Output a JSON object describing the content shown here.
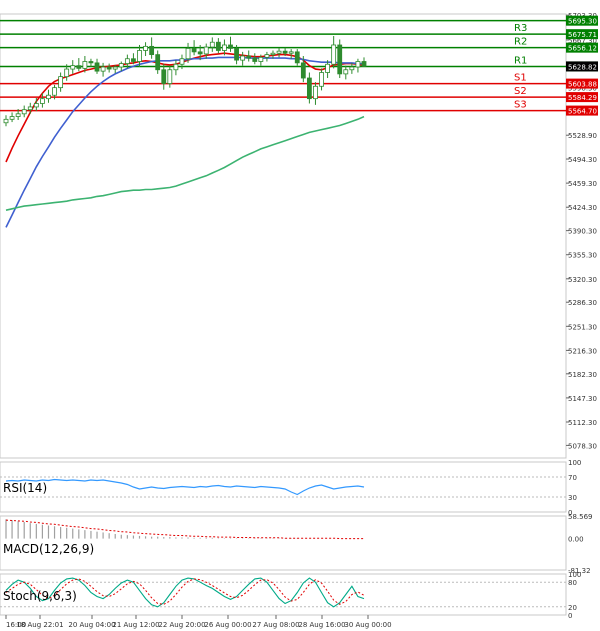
{
  "colors": {
    "background": "#ffffff",
    "grid": "#c8c8c8",
    "axis_text": "#333333",
    "candle_up": "#2e8b2e",
    "candle_down": "#2e8b2e",
    "sma_fast": "#e00000",
    "sma_mid": "#4060d0",
    "sma_slow": "#3cb371",
    "resistance": "#008000",
    "support": "#e00000",
    "rsi": "#3399ff",
    "macd_hist": "#a0a0a0",
    "macd_signal": "#e00000",
    "stoch_main": "#00aa88",
    "stoch_signal": "#e00000"
  },
  "chart_data": [
    {
      "type": "candlestick",
      "panel": "price",
      "ylim": [
        5060,
        5705
      ],
      "y_ticks": [
        5703.3,
        5667.3,
        5633.0,
        5598.3,
        5528.9,
        5494.3,
        5459.3,
        5424.3,
        5390.3,
        5355.3,
        5320.3,
        5286.3,
        5251.3,
        5216.3,
        5182.3,
        5147.3,
        5112.3,
        5078.3
      ],
      "x_ticks": [
        "16:00",
        "18 Aug 22:01",
        "20 Aug 04:00",
        "21 Aug 12:00",
        "22 Aug 20:00",
        "26 Aug 00:00",
        "27 Aug 08:00",
        "28 Aug 16:00",
        "30 Aug 00:00"
      ],
      "candles": [
        [
          5547,
          5558,
          5542,
          5552
        ],
        [
          5552,
          5562,
          5548,
          5556
        ],
        [
          5556,
          5567,
          5551,
          5560
        ],
        [
          5560,
          5572,
          5555,
          5566
        ],
        [
          5566,
          5576,
          5560,
          5570
        ],
        [
          5570,
          5583,
          5564,
          5575
        ],
        [
          5575,
          5590,
          5569,
          5582
        ],
        [
          5582,
          5595,
          5576,
          5587
        ],
        [
          5587,
          5602,
          5581,
          5598
        ],
        [
          5598,
          5620,
          5592,
          5614
        ],
        [
          5614,
          5632,
          5608,
          5625
        ],
        [
          5625,
          5638,
          5618,
          5630
        ],
        [
          5630,
          5641,
          5622,
          5626
        ],
        [
          5626,
          5644,
          5620,
          5636
        ],
        [
          5636,
          5640,
          5628,
          5634
        ],
        [
          5634,
          5640,
          5618,
          5622
        ],
        [
          5622,
          5634,
          5614,
          5628
        ],
        [
          5628,
          5633,
          5620,
          5625
        ],
        [
          5625,
          5631,
          5619,
          5628
        ],
        [
          5628,
          5636,
          5622,
          5633
        ],
        [
          5633,
          5646,
          5626,
          5640
        ],
        [
          5640,
          5648,
          5632,
          5636
        ],
        [
          5636,
          5660,
          5628,
          5652
        ],
        [
          5652,
          5664,
          5644,
          5658
        ],
        [
          5658,
          5671,
          5640,
          5646
        ],
        [
          5646,
          5652,
          5618,
          5624
        ],
        [
          5624,
          5633,
          5595,
          5604
        ],
        [
          5604,
          5630,
          5598,
          5624
        ],
        [
          5624,
          5638,
          5616,
          5632
        ],
        [
          5632,
          5646,
          5625,
          5640
        ],
        [
          5640,
          5663,
          5634,
          5655
        ],
        [
          5655,
          5667,
          5645,
          5650
        ],
        [
          5650,
          5660,
          5638,
          5647
        ],
        [
          5647,
          5662,
          5640,
          5657
        ],
        [
          5657,
          5671,
          5650,
          5664
        ],
        [
          5664,
          5670,
          5648,
          5652
        ],
        [
          5652,
          5668,
          5645,
          5660
        ],
        [
          5660,
          5672,
          5650,
          5655
        ],
        [
          5655,
          5660,
          5632,
          5638
        ],
        [
          5638,
          5650,
          5630,
          5644
        ],
        [
          5644,
          5652,
          5636,
          5641
        ],
        [
          5641,
          5648,
          5632,
          5636
        ],
        [
          5636,
          5646,
          5630,
          5642
        ],
        [
          5642,
          5650,
          5636,
          5646
        ],
        [
          5646,
          5652,
          5640,
          5648
        ],
        [
          5648,
          5655,
          5642,
          5651
        ],
        [
          5651,
          5656,
          5644,
          5648
        ],
        [
          5648,
          5654,
          5640,
          5650
        ],
        [
          5650,
          5654,
          5630,
          5634
        ],
        [
          5634,
          5644,
          5606,
          5612
        ],
        [
          5612,
          5620,
          5575,
          5582
        ],
        [
          5582,
          5606,
          5573,
          5600
        ],
        [
          5600,
          5626,
          5594,
          5620
        ],
        [
          5620,
          5638,
          5612,
          5632
        ],
        [
          5632,
          5673,
          5626,
          5660
        ],
        [
          5660,
          5668,
          5612,
          5618
        ],
        [
          5618,
          5630,
          5610,
          5624
        ],
        [
          5624,
          5634,
          5618,
          5628
        ],
        [
          5628,
          5640,
          5620,
          5636
        ],
        [
          5636,
          5642,
          5628,
          5629
        ]
      ],
      "series": [
        {
          "name": "",
          "role": "sma_fast",
          "values": [
            5490,
            5510,
            5528,
            5545,
            5562,
            5578,
            5590,
            5600,
            5607,
            5611,
            5614,
            5617,
            5620,
            5623,
            5625,
            5627,
            5628,
            5629,
            5630,
            5631,
            5633,
            5634,
            5636,
            5637,
            5636,
            5634,
            5632,
            5631,
            5632,
            5635,
            5638,
            5641,
            5643,
            5645,
            5646,
            5647,
            5648,
            5647,
            5646,
            5645,
            5644,
            5643,
            5643,
            5644,
            5645,
            5646,
            5646,
            5645,
            5643,
            5638,
            5630,
            5625,
            5624,
            5627,
            5631,
            5632,
            5633,
            5633,
            5632,
            5630
          ]
        },
        {
          "name": "",
          "role": "sma_mid",
          "values": [
            5395,
            5413,
            5431,
            5449,
            5466,
            5483,
            5498,
            5512,
            5526,
            5539,
            5551,
            5563,
            5573,
            5583,
            5592,
            5600,
            5607,
            5613,
            5618,
            5622,
            5626,
            5629,
            5632,
            5634,
            5636,
            5637,
            5637,
            5637,
            5638,
            5638,
            5639,
            5640,
            5640,
            5641,
            5641,
            5642,
            5642,
            5642,
            5642,
            5642,
            5641,
            5641,
            5641,
            5641,
            5641,
            5641,
            5641,
            5640,
            5640,
            5639,
            5637,
            5636,
            5635,
            5635,
            5635,
            5634,
            5634,
            5634,
            5633,
            5633
          ]
        },
        {
          "name": "",
          "role": "sma_slow",
          "values": [
            5420,
            5422,
            5424,
            5426,
            5427,
            5428,
            5429,
            5430,
            5431,
            5432,
            5433,
            5435,
            5436,
            5437,
            5438,
            5440,
            5441,
            5443,
            5445,
            5447,
            5448,
            5449,
            5449,
            5450,
            5450,
            5451,
            5452,
            5453,
            5455,
            5458,
            5461,
            5464,
            5467,
            5470,
            5474,
            5478,
            5482,
            5487,
            5492,
            5497,
            5501,
            5505,
            5509,
            5512,
            5515,
            5518,
            5521,
            5524,
            5527,
            5530,
            5533,
            5535,
            5537,
            5539,
            5541,
            5543,
            5546,
            5549,
            5552,
            5556
          ]
        }
      ],
      "levels": [
        {
          "label": "R3",
          "value": 5675.71,
          "value_text": "5675.71",
          "kind": "resistance"
        },
        {
          "label": "R2",
          "value": 5656.12,
          "value_text": "5656.12",
          "kind": "resistance"
        },
        {
          "label": "R1",
          "value": 5628.82,
          "value_text": "5628.82",
          "kind": "resistance"
        },
        {
          "label": "S1",
          "value": 5603.88,
          "value_text": "5603.88",
          "kind": "support"
        },
        {
          "label": "S2",
          "value": 5584.29,
          "value_text": "5584.29",
          "kind": "support"
        },
        {
          "label": "S3",
          "value": 5564.7,
          "value_text": "5564.70",
          "kind": "support"
        }
      ],
      "top_resistance_value": 5695.3,
      "top_resistance_text": "5695.30",
      "last_price": 5628.82,
      "last_price_text": "5628.82"
    },
    {
      "type": "line",
      "panel": "rsi",
      "title": "RSI(14)",
      "ylim": [
        0,
        100
      ],
      "y_ticks": [
        100,
        70,
        30,
        0
      ],
      "series": [
        {
          "name": "",
          "values": [
            62,
            63,
            62,
            64,
            63,
            62,
            64,
            63,
            65,
            64,
            63,
            64,
            63,
            62,
            64,
            63,
            64,
            62,
            60,
            58,
            55,
            50,
            46,
            48,
            50,
            48,
            47,
            49,
            50,
            51,
            50,
            49,
            51,
            50,
            52,
            53,
            51,
            50,
            52,
            51,
            50,
            49,
            51,
            50,
            49,
            48,
            46,
            40,
            35,
            42,
            48,
            52,
            54,
            50,
            46,
            48,
            50,
            51,
            52,
            50
          ]
        }
      ]
    },
    {
      "type": "bar",
      "panel": "macd",
      "title": "MACD(12,26,9)",
      "ylim": [
        -81.32,
        58.569
      ],
      "y_ticks": [
        58.569,
        0.0,
        -81.32
      ],
      "y_tick_labels": [
        "58.569",
        "0.00",
        "-81.32"
      ],
      "series": [
        {
          "name": "",
          "role": "histogram",
          "values": [
            50,
            48,
            45,
            43,
            40,
            38,
            36,
            34,
            32,
            30,
            28,
            26,
            24,
            22,
            20,
            18,
            16,
            14,
            12,
            10,
            9,
            8,
            7,
            6,
            5,
            5,
            4,
            4,
            3,
            3,
            3,
            2,
            2,
            2,
            2,
            1,
            1,
            1,
            1,
            1,
            1,
            1,
            1,
            1,
            1,
            1,
            1,
            1,
            1,
            0,
            0,
            0,
            0,
            0,
            0,
            0,
            0,
            0,
            0,
            0
          ]
        },
        {
          "name": "",
          "role": "signal",
          "values": [
            48,
            47,
            46,
            45,
            43,
            42,
            40,
            38,
            37,
            35,
            33,
            31,
            30,
            28,
            26,
            25,
            23,
            21,
            20,
            18,
            17,
            15,
            14,
            13,
            12,
            11,
            10,
            9,
            8,
            8,
            7,
            6,
            6,
            5,
            5,
            4,
            4,
            4,
            3,
            3,
            3,
            2,
            2,
            2,
            2,
            2,
            1,
            1,
            1,
            1,
            1,
            1,
            1,
            1,
            1,
            0,
            0,
            0,
            0,
            0
          ]
        }
      ]
    },
    {
      "type": "line",
      "panel": "stoch",
      "title": "Stoch(9,6,3)",
      "ylim": [
        0,
        100
      ],
      "y_ticks": [
        100,
        80,
        20,
        0
      ],
      "series": [
        {
          "name": "",
          "role": "main",
          "values": [
            60,
            75,
            85,
            80,
            65,
            45,
            35,
            40,
            60,
            78,
            88,
            90,
            85,
            72,
            55,
            45,
            40,
            50,
            65,
            78,
            85,
            80,
            60,
            40,
            25,
            20,
            30,
            50,
            70,
            85,
            90,
            88,
            80,
            72,
            65,
            55,
            45,
            38,
            45,
            60,
            75,
            88,
            90,
            80,
            60,
            40,
            28,
            35,
            55,
            78,
            90,
            80,
            55,
            30,
            20,
            30,
            50,
            70,
            45,
            40
          ]
        },
        {
          "name": "",
          "role": "signal",
          "values": [
            55,
            65,
            75,
            80,
            75,
            62,
            48,
            40,
            48,
            62,
            76,
            85,
            88,
            82,
            70,
            57,
            47,
            45,
            52,
            64,
            76,
            82,
            76,
            60,
            42,
            28,
            26,
            34,
            50,
            68,
            82,
            88,
            86,
            80,
            72,
            63,
            54,
            45,
            42,
            48,
            60,
            74,
            85,
            86,
            78,
            62,
            44,
            34,
            38,
            55,
            75,
            86,
            78,
            58,
            36,
            26,
            33,
            50,
            56,
            48
          ]
        }
      ]
    }
  ]
}
